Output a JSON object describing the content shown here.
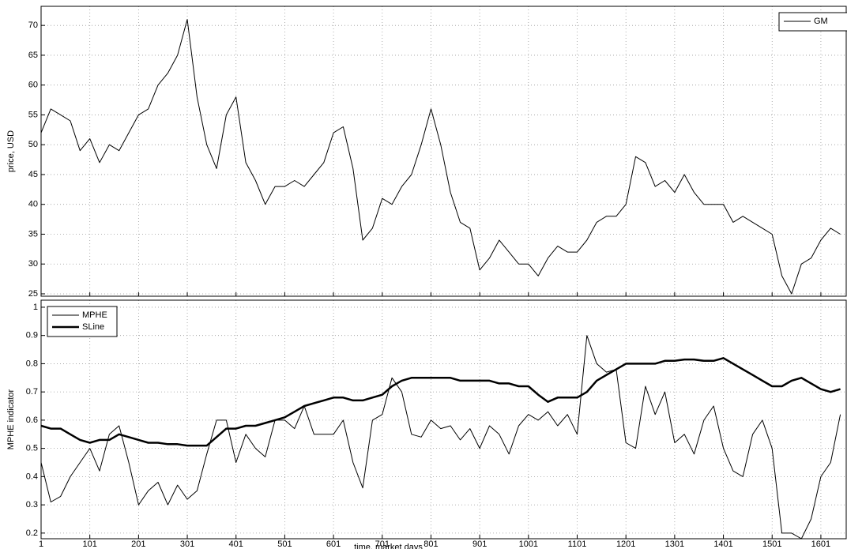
{
  "chart_data": [
    {
      "type": "line",
      "ylabel": "price, USD",
      "x": [
        1,
        21,
        41,
        61,
        81,
        101,
        121,
        141,
        161,
        181,
        201,
        221,
        241,
        261,
        281,
        301,
        321,
        341,
        361,
        381,
        401,
        421,
        441,
        461,
        481,
        501,
        521,
        541,
        561,
        581,
        601,
        621,
        641,
        661,
        681,
        701,
        721,
        741,
        761,
        781,
        801,
        821,
        841,
        861,
        881,
        901,
        921,
        941,
        961,
        981,
        1001,
        1021,
        1041,
        1061,
        1081,
        1101,
        1121,
        1141,
        1161,
        1181,
        1201,
        1221,
        1241,
        1261,
        1281,
        1301,
        1321,
        1341,
        1361,
        1381,
        1401,
        1421,
        1441,
        1461,
        1481,
        1501,
        1521,
        1541,
        1561,
        1581,
        1601,
        1621,
        1641
      ],
      "series": [
        {
          "name": "GM",
          "color": "#000000",
          "linewidth": 1,
          "values": [
            52,
            56,
            55,
            54,
            49,
            51,
            47,
            50,
            49,
            52,
            55,
            56,
            60,
            62,
            65,
            71,
            58,
            50,
            46,
            55,
            58,
            47,
            44,
            40,
            43,
            43,
            44,
            43,
            45,
            47,
            52,
            53,
            46,
            34,
            36,
            41,
            40,
            43,
            45,
            50,
            56,
            50,
            42,
            37,
            36,
            29,
            31,
            34,
            32,
            30,
            30,
            28,
            31,
            33,
            32,
            32,
            34,
            37,
            38,
            38,
            40,
            48,
            47,
            43,
            44,
            42,
            45,
            42,
            40,
            40,
            40,
            37,
            38,
            37,
            36,
            35,
            28,
            25,
            30,
            31,
            34,
            36,
            35
          ]
        }
      ],
      "xlim": [
        1,
        1653
      ],
      "xticks": [
        1,
        101,
        201,
        301,
        401,
        501,
        601,
        701,
        801,
        901,
        1001,
        1101,
        1201,
        1301,
        1401,
        1501,
        1601
      ],
      "show_xtick_labels": false,
      "ylim": [
        24.6,
        73.2
      ],
      "yticks": [
        25,
        30,
        35,
        40,
        45,
        50,
        55,
        60,
        65,
        70
      ],
      "grid": true,
      "legend": "upper right"
    },
    {
      "type": "line",
      "ylabel": "MPHE indicator",
      "xlabel": "time, market days",
      "x": [
        1,
        21,
        41,
        61,
        81,
        101,
        121,
        141,
        161,
        181,
        201,
        221,
        241,
        261,
        281,
        301,
        321,
        341,
        361,
        381,
        401,
        421,
        441,
        461,
        481,
        501,
        521,
        541,
        561,
        581,
        601,
        621,
        641,
        661,
        681,
        701,
        721,
        741,
        761,
        781,
        801,
        821,
        841,
        861,
        881,
        901,
        921,
        941,
        961,
        981,
        1001,
        1021,
        1041,
        1061,
        1081,
        1101,
        1121,
        1141,
        1161,
        1181,
        1201,
        1221,
        1241,
        1261,
        1281,
        1301,
        1321,
        1341,
        1361,
        1381,
        1401,
        1421,
        1441,
        1461,
        1481,
        1501,
        1521,
        1541,
        1561,
        1581,
        1601,
        1621,
        1641
      ],
      "series": [
        {
          "name": "MPHE",
          "color": "#000000",
          "linewidth": 1,
          "values": [
            0.45,
            0.31,
            0.33,
            0.4,
            0.45,
            0.5,
            0.42,
            0.55,
            0.58,
            0.45,
            0.3,
            0.35,
            0.38,
            0.3,
            0.37,
            0.32,
            0.35,
            0.48,
            0.6,
            0.6,
            0.45,
            0.55,
            0.5,
            0.47,
            0.6,
            0.6,
            0.57,
            0.65,
            0.55,
            0.55,
            0.55,
            0.6,
            0.45,
            0.36,
            0.6,
            0.62,
            0.75,
            0.7,
            0.55,
            0.54,
            0.6,
            0.57,
            0.58,
            0.53,
            0.57,
            0.5,
            0.58,
            0.55,
            0.48,
            0.58,
            0.62,
            0.6,
            0.63,
            0.58,
            0.62,
            0.55,
            0.9,
            0.8,
            0.77,
            0.78,
            0.52,
            0.5,
            0.72,
            0.62,
            0.7,
            0.52,
            0.55,
            0.48,
            0.6,
            0.65,
            0.5,
            0.42,
            0.4,
            0.55,
            0.6,
            0.5,
            0.2,
            0.2,
            0.18,
            0.25,
            0.4,
            0.45,
            0.62
          ]
        },
        {
          "name": "SLine",
          "color": "#000000",
          "linewidth": 2.5,
          "values": [
            0.58,
            0.57,
            0.57,
            0.55,
            0.53,
            0.52,
            0.53,
            0.53,
            0.55,
            0.54,
            0.53,
            0.52,
            0.52,
            0.515,
            0.515,
            0.51,
            0.51,
            0.51,
            0.54,
            0.57,
            0.57,
            0.58,
            0.58,
            0.59,
            0.6,
            0.61,
            0.63,
            0.65,
            0.66,
            0.67,
            0.68,
            0.68,
            0.67,
            0.67,
            0.68,
            0.69,
            0.72,
            0.74,
            0.75,
            0.75,
            0.75,
            0.75,
            0.75,
            0.74,
            0.74,
            0.74,
            0.74,
            0.73,
            0.73,
            0.72,
            0.72,
            0.69,
            0.665,
            0.68,
            0.68,
            0.68,
            0.7,
            0.74,
            0.76,
            0.78,
            0.8,
            0.8,
            0.8,
            0.8,
            0.81,
            0.81,
            0.815,
            0.815,
            0.81,
            0.81,
            0.82,
            0.8,
            0.78,
            0.76,
            0.74,
            0.72,
            0.72,
            0.74,
            0.75,
            0.73,
            0.71,
            0.7,
            0.71
          ]
        }
      ],
      "xlim": [
        1,
        1653
      ],
      "xticks": [
        1,
        101,
        201,
        301,
        401,
        501,
        601,
        701,
        801,
        901,
        1001,
        1101,
        1201,
        1301,
        1401,
        1501,
        1601
      ],
      "show_xtick_labels": true,
      "ylim": [
        0.18,
        1.025
      ],
      "yticks": [
        0.2,
        0.3,
        0.4,
        0.5,
        0.6,
        0.7,
        0.8,
        0.9,
        1
      ],
      "grid": true,
      "legend": "upper left"
    }
  ]
}
